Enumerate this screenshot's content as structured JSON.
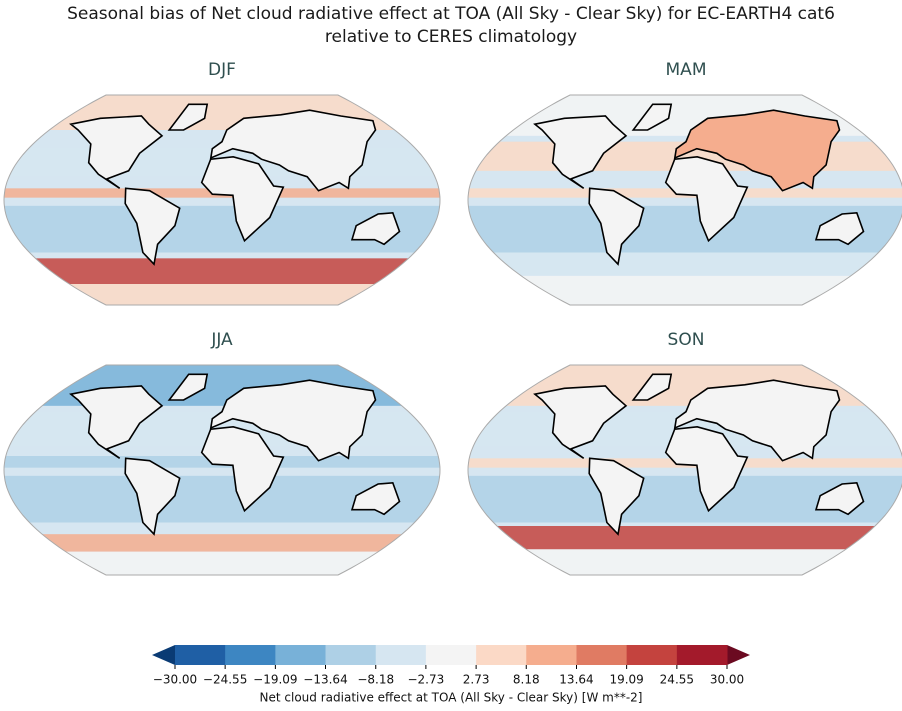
{
  "title": [
    "Seasonal bias of Net cloud radiative effect at TOA (All Sky - Clear Sky) for EC-EARTH4 cat6",
    "relative to CERES climatology"
  ],
  "panels": [
    {
      "title": "DJF"
    },
    {
      "title": "MAM"
    },
    {
      "title": "JJA"
    },
    {
      "title": "SON"
    }
  ],
  "colorbar": {
    "label": "Net cloud radiative effect at TOA (All Sky - Clear Sky) [W m**-2]",
    "extend": "both",
    "ticks": [
      {
        "value": -30,
        "label": "−30.00"
      },
      {
        "value": -24.55,
        "label": "−24.55"
      },
      {
        "value": -19.09,
        "label": "−19.09"
      },
      {
        "value": -13.64,
        "label": "−13.64"
      },
      {
        "value": -8.18,
        "label": "−8.18"
      },
      {
        "value": -2.73,
        "label": "−2.73"
      },
      {
        "value": 2.73,
        "label": "2.73"
      },
      {
        "value": 8.18,
        "label": "8.18"
      },
      {
        "value": 13.64,
        "label": "13.64"
      },
      {
        "value": 19.09,
        "label": "19.09"
      },
      {
        "value": 24.55,
        "label": "24.55"
      },
      {
        "value": 30,
        "label": "30.00"
      }
    ],
    "colors": [
      "#0a3b74",
      "#1f5fa5",
      "#3d86c2",
      "#78b1d8",
      "#aed0e6",
      "#d6e6f1",
      "#f4f4f4",
      "#fbd9c6",
      "#f5ad8e",
      "#e07b63",
      "#c4433e",
      "#a31a2b",
      "#6b0a21"
    ]
  }
}
